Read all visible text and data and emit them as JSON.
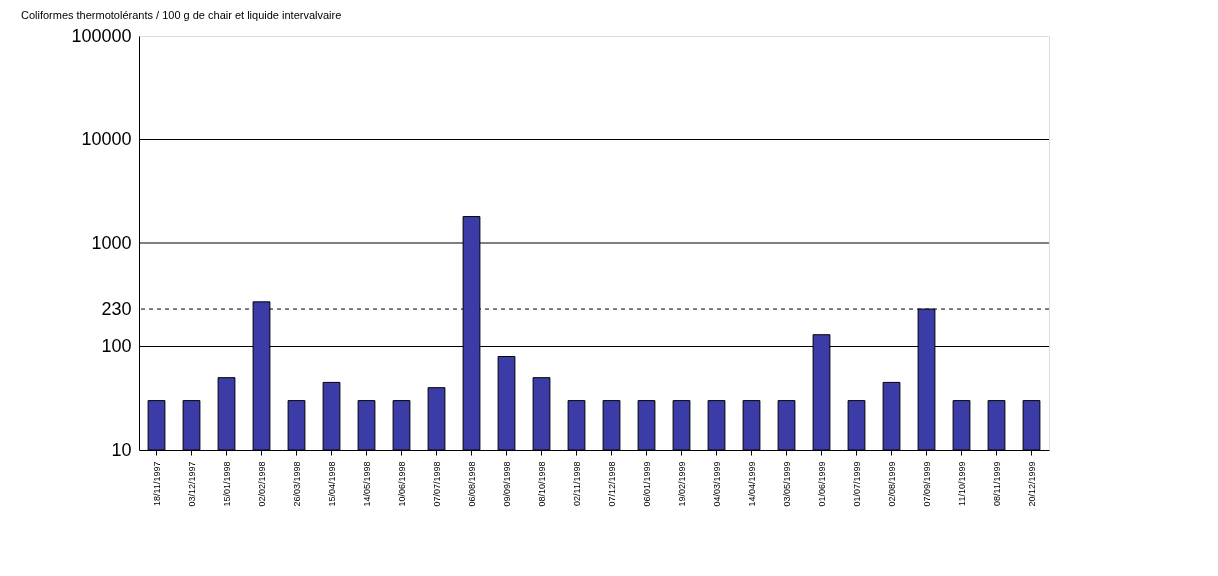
{
  "chart_data": {
    "type": "bar",
    "title": "Coliformes thermotolérants / 100 g de chair et liquide intervalvaire",
    "categories": [
      "18/11/1997",
      "03/12/1997",
      "15/01/1998",
      "02/02/1998",
      "26/03/1998",
      "15/04/1998",
      "14/05/1998",
      "10/06/1998",
      "07/07/1998",
      "06/08/1998",
      "09/09/1998",
      "08/10/1998",
      "02/11/1998",
      "07/12/1998",
      "06/01/1999",
      "19/02/1999",
      "04/03/1999",
      "14/04/1999",
      "03/05/1999",
      "01/06/1999",
      "01/07/1999",
      "02/08/1999",
      "07/09/1999",
      "11/10/1999",
      "08/11/1999",
      "20/12/1999"
    ],
    "values": [
      30,
      30,
      50,
      270,
      30,
      45,
      30,
      30,
      40,
      1800,
      80,
      50,
      30,
      30,
      30,
      30,
      30,
      30,
      30,
      130,
      30,
      45,
      230,
      30,
      30,
      30
    ],
    "color": "#3c3ca8",
    "log": true,
    "ylim": [
      10,
      100000
    ],
    "yticks": [
      10,
      100,
      230,
      1000,
      10000,
      100000
    ],
    "grid": "y",
    "ref_lines": [
      {
        "axis": "y",
        "value": 230,
        "line_style": "dashed",
        "color": "#000000"
      }
    ]
  }
}
